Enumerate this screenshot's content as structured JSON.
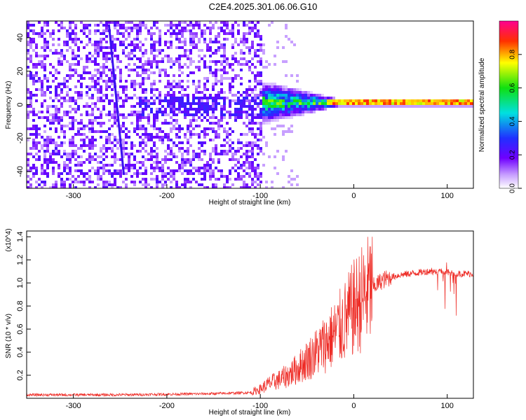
{
  "title": "C2E4.2025.301.06.06.G10",
  "colors": {
    "snr_line": "#ee2a24",
    "axis": "#000000",
    "background": "#ffffff"
  },
  "chart_data": [
    {
      "type": "heatmap",
      "xlabel": "Height of straight line (km)",
      "ylabel": "Frequency (Hz)",
      "xlim": [
        -350,
        128
      ],
      "ylim": [
        -50,
        50
      ],
      "x_ticks": [
        -300,
        -200,
        -100,
        0,
        100
      ],
      "y_ticks": [
        -40,
        -20,
        0,
        20,
        40
      ],
      "colorbar": {
        "label": "Normalized spectral amplitude",
        "range": [
          0.0,
          1.0
        ],
        "ticks": [
          0.0,
          0.2,
          0.4,
          0.6,
          0.8
        ],
        "colormap": "white-purple-blue-cyan-green-yellow-red-magenta"
      },
      "features": [
        {
          "kind": "noise",
          "x_range": [
            -350,
            -100
          ],
          "y_range": [
            -50,
            50
          ],
          "amplitude": 0.12
        },
        {
          "kind": "signal_band",
          "x_range": [
            -100,
            128
          ],
          "center_freq": 2,
          "amplitude": 0.7
        },
        {
          "kind": "streak",
          "x_start": -262,
          "y_start": 48,
          "x_end": -246,
          "y_end": -42
        }
      ]
    },
    {
      "type": "line",
      "xlabel": "Height of straight line (km)",
      "ylabel": "SNR (10 * v/v)",
      "y_multiplier": "(x10^4)",
      "xlim": [
        -350,
        128
      ],
      "ylim": [
        0,
        1.45
      ],
      "x_ticks": [
        -300,
        -200,
        -100,
        0,
        100
      ],
      "y_ticks": [
        0.2,
        0.4,
        0.6,
        0.8,
        1.0,
        1.2,
        1.4
      ],
      "series": [
        {
          "x": [
            -350,
            -300,
            -250,
            -200,
            -150,
            -110,
            -100,
            -90,
            -80,
            -70,
            -60,
            -50,
            -40,
            -30,
            -20,
            -10,
            0,
            10,
            20,
            30,
            40,
            50,
            60,
            70,
            80,
            90,
            100,
            110,
            120,
            128
          ],
          "values": [
            0.03,
            0.03,
            0.03,
            0.035,
            0.04,
            0.05,
            0.08,
            0.13,
            0.16,
            0.2,
            0.26,
            0.33,
            0.4,
            0.48,
            0.56,
            0.66,
            0.78,
            0.88,
            0.96,
            1.02,
            1.05,
            1.07,
            1.08,
            1.09,
            1.1,
            1.1,
            1.09,
            1.08,
            1.08,
            1.08
          ]
        }
      ]
    }
  ]
}
